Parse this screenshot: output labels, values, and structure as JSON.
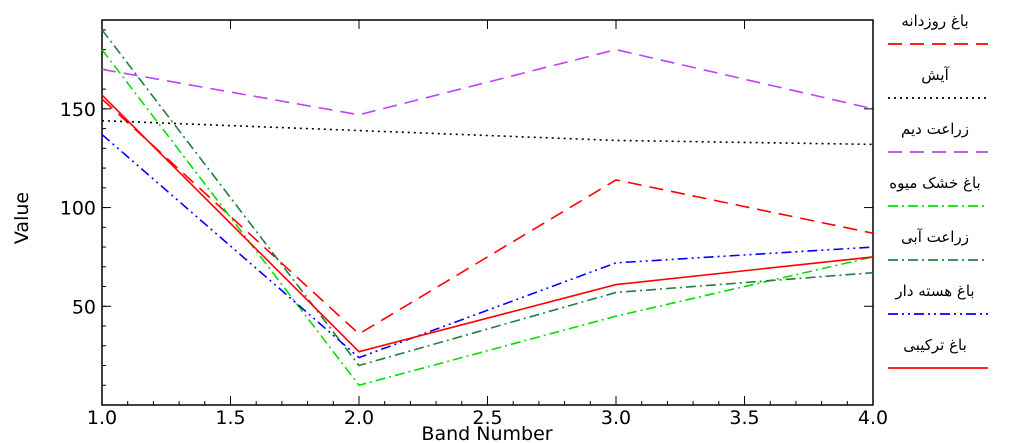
{
  "chart_data": {
    "type": "line",
    "xlabel": "Band Number",
    "ylabel": "Value",
    "xlim": [
      1.0,
      4.0
    ],
    "ylim": [
      0,
      195
    ],
    "x_ticks": [
      "1.0",
      "1.5",
      "2.0",
      "2.5",
      "3.0",
      "3.5",
      "4.0"
    ],
    "y_ticks": [
      "50",
      "100",
      "150"
    ],
    "grid": false,
    "legend_position": "right",
    "x": [
      1,
      2,
      3,
      4
    ],
    "series": [
      {
        "name": "باغ روزدانه",
        "values": [
          155,
          36,
          114,
          87
        ],
        "color": "#ff0000",
        "dash": "dashed"
      },
      {
        "name": "آیش",
        "values": [
          144,
          139,
          134,
          132
        ],
        "color": "#000000",
        "dash": "dotted"
      },
      {
        "name": "زراعت دیم",
        "values": [
          170,
          147,
          180,
          150
        ],
        "color": "#c040ff",
        "dash": "dashed"
      },
      {
        "name": "باغ خشک میوه",
        "values": [
          180,
          10,
          45,
          75
        ],
        "color": "#00e000",
        "dash": "dashdot"
      },
      {
        "name": "زراعت آبی",
        "values": [
          190,
          20,
          57,
          67
        ],
        "color": "#208040",
        "dash": "dashdot"
      },
      {
        "name": "باغ هسته دار",
        "values": [
          137,
          24,
          72,
          80
        ],
        "color": "#0000ff",
        "dash": "dashdotdot"
      },
      {
        "name": "باغ ترکیبی",
        "values": [
          157,
          27,
          61,
          75
        ],
        "color": "#ff0000",
        "dash": "solid"
      }
    ]
  }
}
